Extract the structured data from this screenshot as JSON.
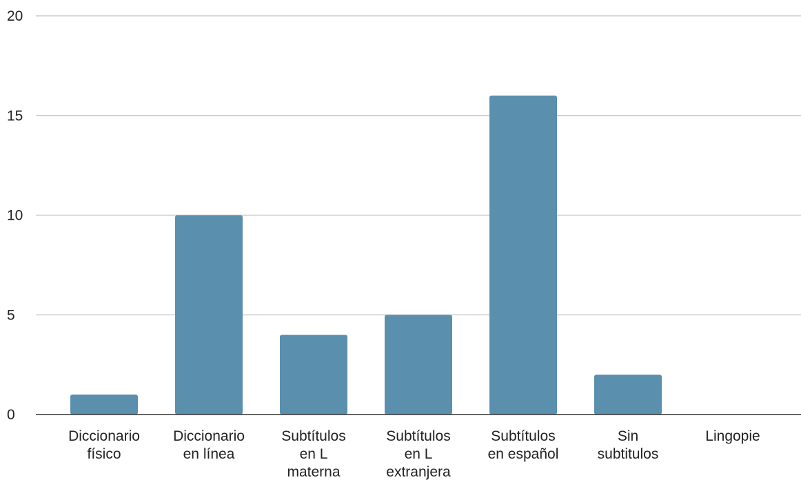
{
  "chart_data": {
    "type": "bar",
    "categories": [
      [
        "Diccionario",
        "físico"
      ],
      [
        "Diccionario",
        "en línea"
      ],
      [
        "Subtítulos",
        "en L",
        "materna"
      ],
      [
        "Subtítulos",
        "en L",
        "extranjera"
      ],
      [
        "Subtítulos",
        "en español"
      ],
      [
        "Sin",
        "subtitulos"
      ],
      [
        "Lingopie"
      ]
    ],
    "values": [
      1,
      10,
      4,
      5,
      16,
      2,
      0
    ],
    "ylim": [
      0,
      20
    ],
    "yticks": [
      "0",
      "5",
      "10",
      "15",
      "20"
    ],
    "grid": true,
    "bar_color": "#5b8fae",
    "title": "",
    "xlabel": "",
    "ylabel": ""
  }
}
